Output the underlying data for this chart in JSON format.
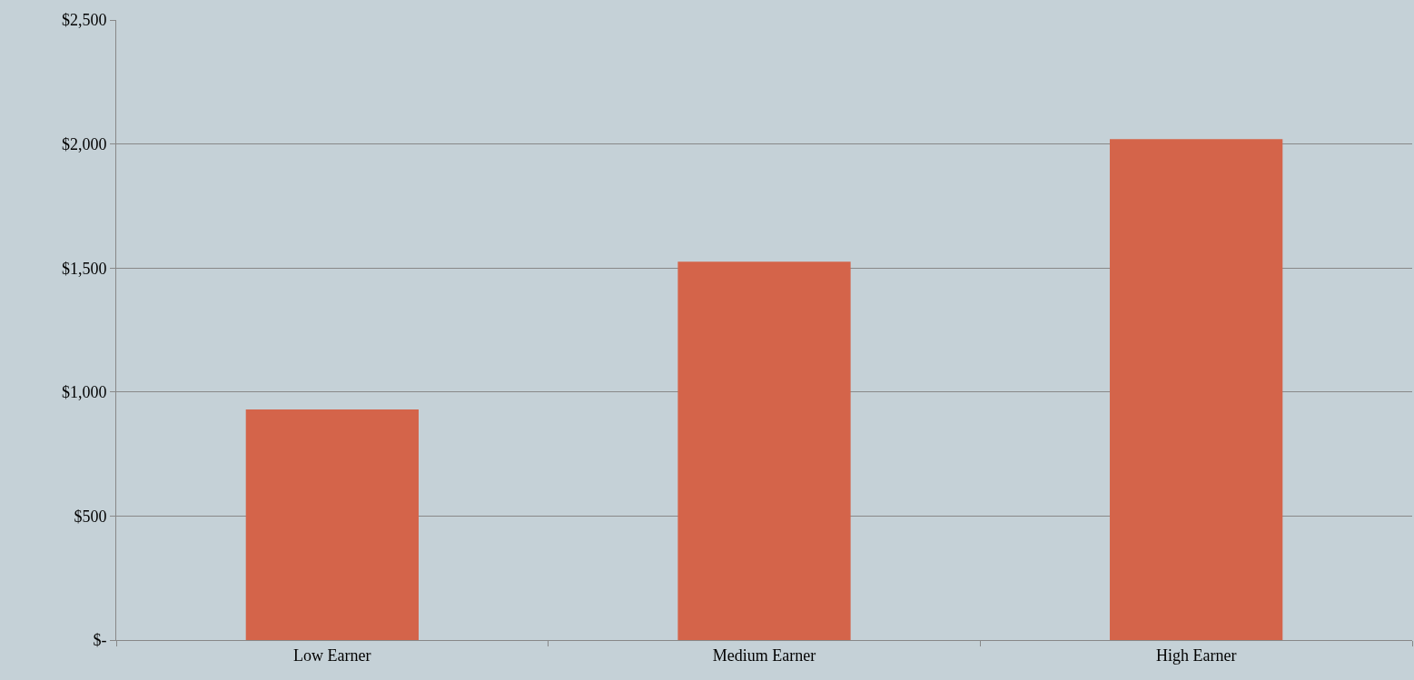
{
  "chart_data": {
    "type": "bar",
    "categories": [
      "Low Earner",
      "Medium Earner",
      "High Earner"
    ],
    "values": [
      930,
      1525,
      2020
    ],
    "color": "#d4644a",
    "ylim": [
      0,
      2500
    ],
    "yticks": [
      {
        "value": 0,
        "label": "$-"
      },
      {
        "value": 500,
        "label": "$500"
      },
      {
        "value": 1000,
        "label": "$1,000"
      },
      {
        "value": 1500,
        "label": "$1,500"
      },
      {
        "value": 2000,
        "label": "$2,000"
      },
      {
        "value": 2500,
        "label": "$2,500"
      }
    ],
    "grid": "y"
  }
}
